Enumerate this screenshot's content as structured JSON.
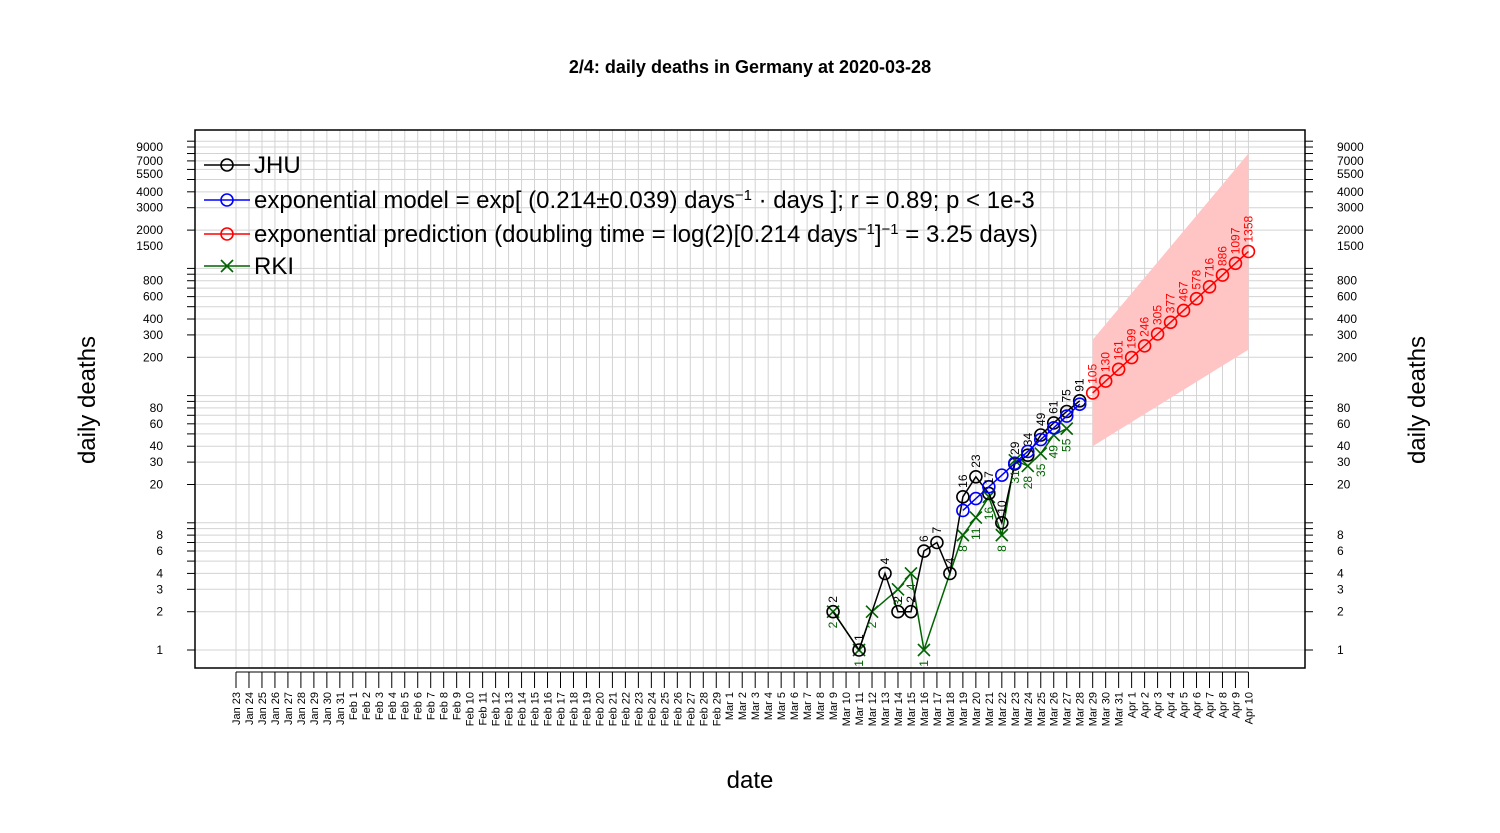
{
  "chart_data": {
    "type": "line",
    "title": "2/4: daily deaths in Germany at 2020-03-28",
    "xlabel": "date",
    "ylabel": "daily deaths",
    "y_scale": "log",
    "ylim": [
      0.8,
      13000
    ],
    "grid": true,
    "legend_position": "top-left",
    "y_ticks": [
      "1",
      "2",
      "3",
      "4",
      "6",
      "8",
      "20",
      "30",
      "40",
      "60",
      "80",
      "200",
      "300",
      "400",
      "600",
      "800",
      "1500",
      "2000",
      "3000",
      "4000",
      "5500",
      "7000",
      "9000"
    ],
    "dates": [
      "Jan 23",
      "Jan 24",
      "Jan 25",
      "Jan 26",
      "Jan 27",
      "Jan 28",
      "Jan 29",
      "Jan 30",
      "Jan 31",
      "Feb 1",
      "Feb 2",
      "Feb 3",
      "Feb 4",
      "Feb 5",
      "Feb 6",
      "Feb 7",
      "Feb 8",
      "Feb 9",
      "Feb 10",
      "Feb 11",
      "Feb 12",
      "Feb 13",
      "Feb 14",
      "Feb 15",
      "Feb 16",
      "Feb 17",
      "Feb 18",
      "Feb 19",
      "Feb 20",
      "Feb 21",
      "Feb 22",
      "Feb 23",
      "Feb 24",
      "Feb 25",
      "Feb 26",
      "Feb 27",
      "Feb 28",
      "Feb 29",
      "Mar 1",
      "Mar 2",
      "Mar 3",
      "Mar 4",
      "Mar 5",
      "Mar 6",
      "Mar 7",
      "Mar 8",
      "Mar 9",
      "Mar 10",
      "Mar 11",
      "Mar 12",
      "Mar 13",
      "Mar 14",
      "Mar 15",
      "Mar 16",
      "Mar 17",
      "Mar 18",
      "Mar 19",
      "Mar 20",
      "Mar 21",
      "Mar 22",
      "Mar 23",
      "Mar 24",
      "Mar 25",
      "Mar 26",
      "Mar 27",
      "Mar 28",
      "Mar 29",
      "Mar 30",
      "Mar 31",
      "Apr 1",
      "Apr 2",
      "Apr 3",
      "Apr 4",
      "Apr 5",
      "Apr 6",
      "Apr 7",
      "Apr 8",
      "Apr 9",
      "Apr 10"
    ],
    "legend": [
      {
        "label": "JHU",
        "color": "#000000",
        "marker": "circle"
      },
      {
        "label_parts": [
          "exponential model = exp[ (0.214",
          "±",
          "0.039) days",
          "−1",
          " · ",
          " days ]; r = 0.89; p < 1e-3"
        ],
        "color": "#0000ff",
        "marker": "circle"
      },
      {
        "label_parts": [
          "exponential prediction (doubling time = log(2)[0.214 days",
          "−1",
          "]",
          "−1",
          " = 3.25 days)"
        ],
        "color": "#ff0000",
        "marker": "circle"
      },
      {
        "label": "RKI",
        "color": "#006400",
        "marker": "x"
      }
    ],
    "series": [
      {
        "name": "JHU",
        "color": "#000000",
        "marker": "circle",
        "points": [
          {
            "x": "Mar 9",
            "y": 2,
            "label": "2"
          },
          {
            "x": "Mar 11",
            "y": 1,
            "label": "1"
          },
          {
            "x": "Mar 13",
            "y": 4,
            "label": "4"
          },
          {
            "x": "Mar 14",
            "y": 2,
            "label": "2"
          },
          {
            "x": "Mar 15",
            "y": 2,
            "label": "2"
          },
          {
            "x": "Mar 16",
            "y": 6,
            "label": "6"
          },
          {
            "x": "Mar 17",
            "y": 7,
            "label": "7"
          },
          {
            "x": "Mar 18",
            "y": 4,
            "label": "4"
          },
          {
            "x": "Mar 19",
            "y": 16,
            "label": "16"
          },
          {
            "x": "Mar 20",
            "y": 23,
            "label": "23"
          },
          {
            "x": "Mar 21",
            "y": 17,
            "label": "17"
          },
          {
            "x": "Mar 22",
            "y": 10,
            "label": "10"
          },
          {
            "x": "Mar 23",
            "y": 29,
            "label": "29"
          },
          {
            "x": "Mar 24",
            "y": 34,
            "label": "34"
          },
          {
            "x": "Mar 25",
            "y": 49,
            "label": "49"
          },
          {
            "x": "Mar 26",
            "y": 61,
            "label": "61"
          },
          {
            "x": "Mar 27",
            "y": 75,
            "label": "75"
          },
          {
            "x": "Mar 28",
            "y": 91,
            "label": "91"
          }
        ]
      },
      {
        "name": "exponential model",
        "color": "#0000ff",
        "marker": "circle",
        "points": [
          {
            "x": "Mar 19",
            "y": 12.5
          },
          {
            "x": "Mar 20",
            "y": 15.5
          },
          {
            "x": "Mar 21",
            "y": 19.2
          },
          {
            "x": "Mar 22",
            "y": 23.7
          },
          {
            "x": "Mar 23",
            "y": 29.4
          },
          {
            "x": "Mar 24",
            "y": 36.4
          },
          {
            "x": "Mar 25",
            "y": 45.1
          },
          {
            "x": "Mar 26",
            "y": 55.8
          },
          {
            "x": "Mar 27",
            "y": 69.1
          },
          {
            "x": "Mar 28",
            "y": 85.6
          }
        ]
      },
      {
        "name": "exponential prediction",
        "color": "#ff0000",
        "marker": "circle",
        "band_color": "#ffc4c4",
        "points": [
          {
            "x": "Mar 29",
            "y": 105,
            "label": "105",
            "lo": 40,
            "hi": 275
          },
          {
            "x": "Mar 30",
            "y": 130,
            "label": "130",
            "lo": 46,
            "hi": 370
          },
          {
            "x": "Mar 31",
            "y": 161,
            "label": "161"
          },
          {
            "x": "Apr 1",
            "y": 199,
            "label": "199"
          },
          {
            "x": "Apr 2",
            "y": 246,
            "label": "246"
          },
          {
            "x": "Apr 3",
            "y": 305,
            "label": "305"
          },
          {
            "x": "Apr 4",
            "y": 377,
            "label": "377"
          },
          {
            "x": "Apr 5",
            "y": 467,
            "label": "467"
          },
          {
            "x": "Apr 6",
            "y": 578,
            "label": "578"
          },
          {
            "x": "Apr 7",
            "y": 716,
            "label": "716"
          },
          {
            "x": "Apr 8",
            "y": 886,
            "label": "886"
          },
          {
            "x": "Apr 9",
            "y": 1097,
            "label": "1097"
          },
          {
            "x": "Apr 10",
            "y": 1358,
            "label": "1358",
            "lo": 230,
            "hi": 8000
          }
        ]
      },
      {
        "name": "RKI",
        "color": "#006400",
        "marker": "x",
        "points": [
          {
            "x": "Mar 9",
            "y": 2,
            "label": "2"
          },
          {
            "x": "Mar 11",
            "y": 1,
            "label": "1"
          },
          {
            "x": "Mar 12",
            "y": 2,
            "label": "2"
          },
          {
            "x": "Mar 14",
            "y": 3,
            "label": "3"
          },
          {
            "x": "Mar 15",
            "y": 4,
            "label": "4"
          },
          {
            "x": "Mar 16",
            "y": 1,
            "label": "1"
          },
          {
            "x": "Mar 19",
            "y": 8,
            "label": "8"
          },
          {
            "x": "Mar 20",
            "y": 11,
            "label": "11"
          },
          {
            "x": "Mar 21",
            "y": 16,
            "label": "16"
          },
          {
            "x": "Mar 22",
            "y": 8,
            "label": "8"
          },
          {
            "x": "Mar 23",
            "y": 31,
            "label": "31"
          },
          {
            "x": "Mar 24",
            "y": 28,
            "label": "28"
          },
          {
            "x": "Mar 25",
            "y": 35,
            "label": "35"
          },
          {
            "x": "Mar 26",
            "y": 49,
            "label": "49"
          },
          {
            "x": "Mar 27",
            "y": 55,
            "label": "55"
          }
        ]
      }
    ]
  }
}
